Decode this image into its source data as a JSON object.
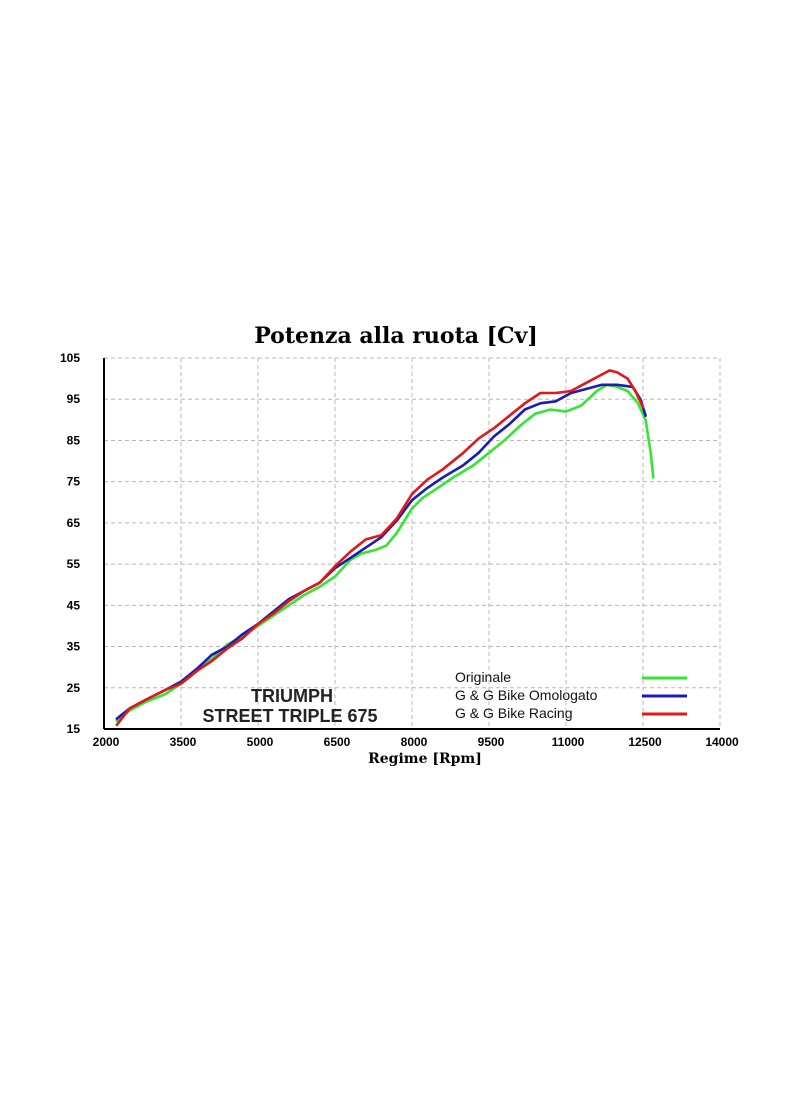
{
  "chart_data": {
    "type": "line",
    "title": "Potenza alla ruota  [Cv]",
    "xlabel": "Regime [Rpm]",
    "ylabel": "",
    "xlim": [
      2000,
      14000
    ],
    "ylim": [
      15,
      105
    ],
    "xticks": [
      2000,
      3500,
      5000,
      6500,
      8000,
      9500,
      11000,
      12500,
      14000
    ],
    "yticks": [
      15,
      25,
      35,
      45,
      55,
      65,
      75,
      85,
      95,
      105
    ],
    "grid": true,
    "legend_position": "bottom-right",
    "annotations": [
      "TRIUMPH",
      "STREET TRIPLE 675"
    ],
    "series": [
      {
        "name": "Originale",
        "color": "#33e633",
        "points": [
          [
            2250,
            17
          ],
          [
            2500,
            19.5
          ],
          [
            2800,
            21.5
          ],
          [
            3200,
            23.5
          ],
          [
            3500,
            26
          ],
          [
            3800,
            29
          ],
          [
            4100,
            32
          ],
          [
            4400,
            35.5
          ],
          [
            4700,
            37.5
          ],
          [
            5000,
            40
          ],
          [
            5300,
            42.5
          ],
          [
            5600,
            45
          ],
          [
            5900,
            47.5
          ],
          [
            6200,
            49.5
          ],
          [
            6500,
            52
          ],
          [
            6800,
            56
          ],
          [
            7000,
            57.5
          ],
          [
            7300,
            58.5
          ],
          [
            7500,
            59.5
          ],
          [
            7700,
            62.5
          ],
          [
            8000,
            68.5
          ],
          [
            8200,
            71
          ],
          [
            8500,
            73.5
          ],
          [
            8800,
            76
          ],
          [
            9200,
            79
          ],
          [
            9500,
            82
          ],
          [
            9800,
            85
          ],
          [
            10100,
            88.5
          ],
          [
            10400,
            91.5
          ],
          [
            10700,
            92.5
          ],
          [
            11000,
            92
          ],
          [
            11300,
            93.5
          ],
          [
            11600,
            97
          ],
          [
            11800,
            98.5
          ],
          [
            12000,
            98
          ],
          [
            12200,
            97
          ],
          [
            12400,
            94
          ],
          [
            12550,
            90
          ],
          [
            12650,
            82
          ],
          [
            12700,
            76
          ]
        ]
      },
      {
        "name": "G & G Bike Omologato",
        "color": "#1c1cb4",
        "points": [
          [
            2250,
            17.5
          ],
          [
            2500,
            20
          ],
          [
            2800,
            22
          ],
          [
            3200,
            24.5
          ],
          [
            3500,
            26.5
          ],
          [
            3800,
            29.5
          ],
          [
            4100,
            33
          ],
          [
            4400,
            35
          ],
          [
            4700,
            38
          ],
          [
            5000,
            40.5
          ],
          [
            5300,
            43.5
          ],
          [
            5600,
            46.5
          ],
          [
            5900,
            48.5
          ],
          [
            6200,
            50.5
          ],
          [
            6500,
            54
          ],
          [
            6800,
            56.5
          ],
          [
            7100,
            59
          ],
          [
            7400,
            61.5
          ],
          [
            7700,
            65.5
          ],
          [
            8000,
            70.5
          ],
          [
            8300,
            73.5
          ],
          [
            8600,
            76
          ],
          [
            9000,
            79
          ],
          [
            9300,
            82
          ],
          [
            9600,
            86
          ],
          [
            9900,
            89
          ],
          [
            10200,
            92.5
          ],
          [
            10500,
            94
          ],
          [
            10800,
            94.5
          ],
          [
            11100,
            96.5
          ],
          [
            11400,
            97.5
          ],
          [
            11700,
            98.5
          ],
          [
            12000,
            98.5
          ],
          [
            12300,
            98
          ],
          [
            12450,
            95
          ],
          [
            12550,
            91
          ]
        ]
      },
      {
        "name": "G & G Bike Racing",
        "color": "#e01818",
        "points": [
          [
            2250,
            16
          ],
          [
            2500,
            20
          ],
          [
            2800,
            22
          ],
          [
            3200,
            24.5
          ],
          [
            3500,
            26
          ],
          [
            3800,
            29
          ],
          [
            4100,
            31.5
          ],
          [
            4400,
            34.5
          ],
          [
            4700,
            37
          ],
          [
            5000,
            40.5
          ],
          [
            5300,
            43
          ],
          [
            5600,
            46
          ],
          [
            5900,
            48.5
          ],
          [
            6200,
            50.5
          ],
          [
            6500,
            54.5
          ],
          [
            6800,
            58
          ],
          [
            7100,
            61
          ],
          [
            7400,
            62
          ],
          [
            7700,
            66
          ],
          [
            8000,
            72
          ],
          [
            8300,
            75.5
          ],
          [
            8600,
            78
          ],
          [
            9000,
            82
          ],
          [
            9300,
            85.5
          ],
          [
            9600,
            88
          ],
          [
            9900,
            91
          ],
          [
            10200,
            94
          ],
          [
            10500,
            96.5
          ],
          [
            10800,
            96.5
          ],
          [
            11100,
            97
          ],
          [
            11400,
            99
          ],
          [
            11700,
            101
          ],
          [
            11850,
            102
          ],
          [
            12000,
            101.5
          ],
          [
            12200,
            100
          ],
          [
            12350,
            97
          ],
          [
            12500,
            93
          ]
        ]
      }
    ]
  }
}
